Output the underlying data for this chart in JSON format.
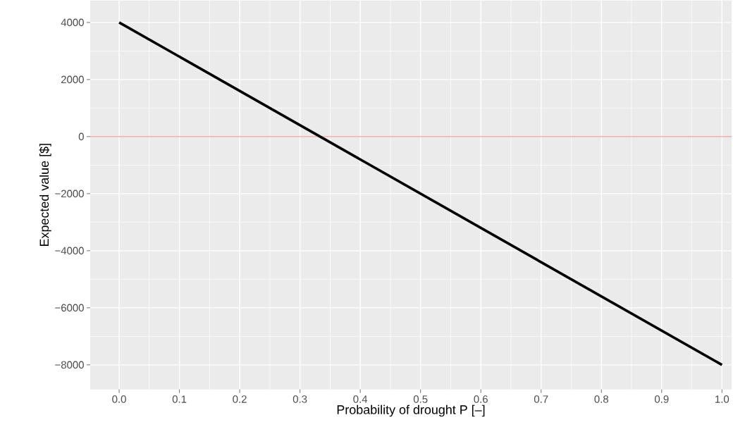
{
  "chart_data": {
    "type": "line",
    "xlabel": "Probability of drought P [–]",
    "ylabel": "Expected value [$]",
    "x": [
      0,
      1
    ],
    "series": [
      {
        "color": "#000000",
        "values": [
          4000,
          -8000
        ]
      }
    ],
    "xlim": [
      -0.048,
      1.016
    ],
    "ylim": [
      -8860,
      4770
    ],
    "xticks": [
      {
        "value": 0,
        "label": "0.0"
      },
      {
        "value": 0.1,
        "label": "0.1"
      },
      {
        "value": 0.2,
        "label": "0.2"
      },
      {
        "value": 0.3,
        "label": "0.3"
      },
      {
        "value": 0.4,
        "label": "0.4"
      },
      {
        "value": 0.5,
        "label": "0.5"
      },
      {
        "value": 0.6,
        "label": "0.6"
      },
      {
        "value": 0.7,
        "label": "0.7"
      },
      {
        "value": 0.8,
        "label": "0.8"
      },
      {
        "value": 0.9,
        "label": "0.9"
      },
      {
        "value": 1,
        "label": "1.0"
      }
    ],
    "yticks": [
      {
        "value": -8000,
        "label": "−8000"
      },
      {
        "value": -6000,
        "label": "−6000"
      },
      {
        "value": -4000,
        "label": "−4000"
      },
      {
        "value": -2000,
        "label": "−2000"
      },
      {
        "value": 0,
        "label": "0"
      },
      {
        "value": 2000,
        "label": "2000"
      },
      {
        "value": 4000,
        "label": "4000"
      }
    ],
    "ref_lines": [
      {
        "axis": "y",
        "value": 0,
        "color": "#e8393a"
      }
    ],
    "grid": true,
    "marker": "none",
    "line_style": "solid"
  }
}
